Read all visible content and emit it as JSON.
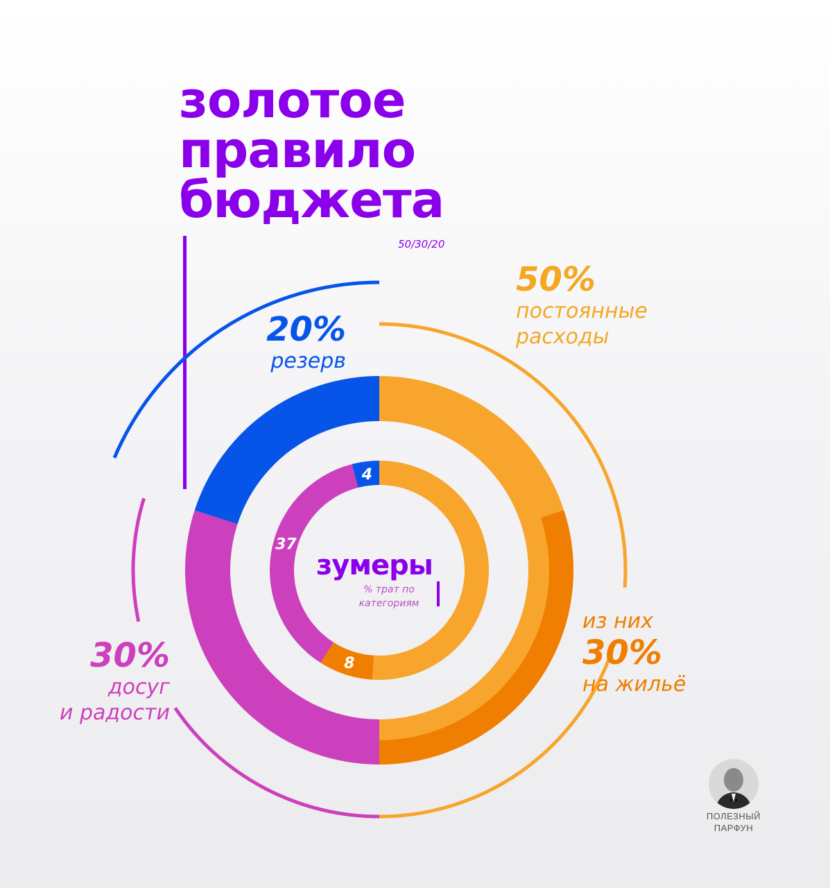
{
  "title_lines": [
    "золотое",
    "правило",
    "бюджета"
  ],
  "subtitle": "50/30/20",
  "labels": {
    "reserve": {
      "pct": "20%",
      "text": "резерв"
    },
    "fixed": {
      "pct": "50%",
      "line1": "постоянные",
      "line2": "расходы"
    },
    "housing": {
      "pre": "из них",
      "pct": "30%",
      "text": "на жильё"
    },
    "leisure": {
      "pct": "30%",
      "line1": "досуг",
      "line2": "и радости"
    }
  },
  "center": {
    "title": "зумеры",
    "sub1": "% трат по",
    "sub2": "категориям"
  },
  "badge": {
    "line1": "ПОЛЕЗНЫЙ",
    "line2": "ПАРФУН"
  },
  "colors": {
    "purple": "#8a00ea",
    "reserve": "#0755e8",
    "fixed": "#f7a52c",
    "housing": "#f07e00",
    "leisure": "#cc3fbd"
  },
  "chart_data": [
    {
      "type": "pie",
      "title": "золотое правило бюджета",
      "subtitle": "50/30/20",
      "categories": [
        "постоянные расходы",
        "досуг и радости",
        "резерв"
      ],
      "values": [
        50,
        30,
        20
      ],
      "sub_values": [
        {
          "category": "на жильё",
          "value": 30,
          "parent": "постоянные расходы"
        }
      ]
    },
    {
      "type": "pie",
      "title": "зумеры",
      "subtitle": "% трат по категориям",
      "categories": [
        "постоянные расходы",
        "из них на жильё",
        "досуг и радости",
        "резерв"
      ],
      "values": [
        51,
        8,
        37,
        4
      ],
      "data_labels": [
        "",
        "8",
        "37",
        "4"
      ]
    }
  ]
}
